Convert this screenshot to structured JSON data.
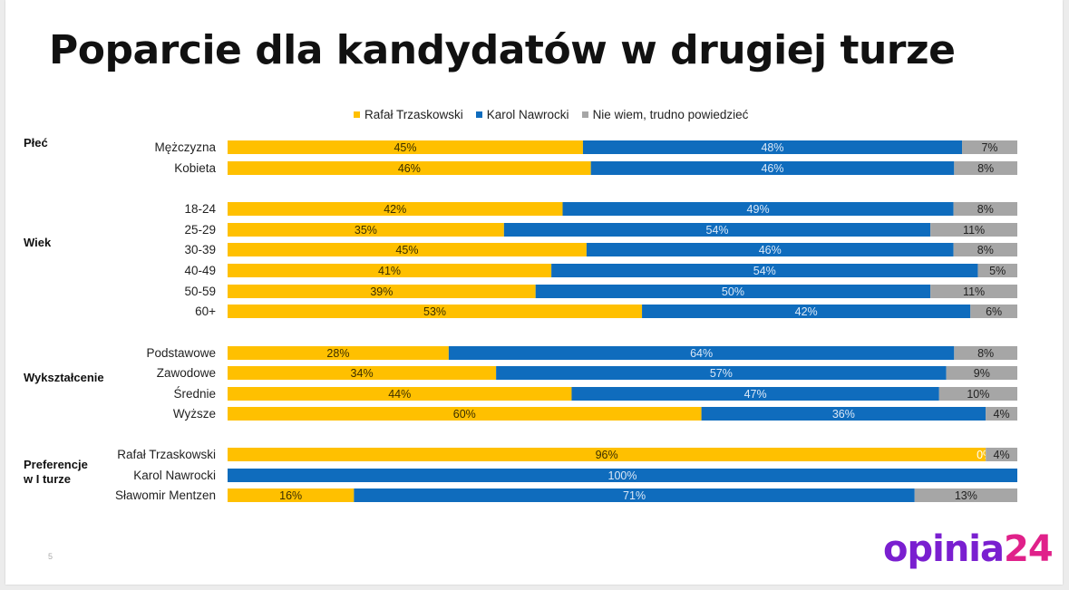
{
  "title": "Poparcie dla kandydatów w drugiej turze",
  "page_number": "5",
  "logo": {
    "main": "opinia",
    "accent": "24"
  },
  "colors": {
    "trzaskowski": "#ffc000",
    "nawrocki": "#0f6cbd",
    "unknown": "#a6a6a6"
  },
  "chart_data": {
    "type": "bar",
    "orientation": "horizontal",
    "stacked": true,
    "percent": true,
    "title": "Poparcie dla kandydatów w drugiej turze",
    "legend_position": "top",
    "series": [
      {
        "name": "Rafał Trzaskowski",
        "key": "trzaskowski"
      },
      {
        "name": "Karol Nawrocki",
        "key": "nawrocki"
      },
      {
        "name": "Nie wiem, trudno powiedzieć",
        "key": "unknown"
      }
    ],
    "groups": [
      {
        "label": [
          "Płeć"
        ],
        "rows": [
          {
            "category": "Mężczyzna",
            "values": [
              45,
              48,
              7
            ],
            "labels": [
              "45%",
              "48%",
              "7%"
            ]
          },
          {
            "category": "Kobieta",
            "values": [
              46,
              46,
              8
            ],
            "labels": [
              "46%",
              "46%",
              "8%"
            ]
          }
        ]
      },
      {
        "label": [
          "Wiek"
        ],
        "rows": [
          {
            "category": "18-24",
            "values": [
              42,
              49,
              8
            ],
            "labels": [
              "42%",
              "49%",
              "8%"
            ]
          },
          {
            "category": "25-29",
            "values": [
              35,
              54,
              11
            ],
            "labels": [
              "35%",
              "54%",
              "11%"
            ]
          },
          {
            "category": "30-39",
            "values": [
              45,
              46,
              8
            ],
            "labels": [
              "45%",
              "46%",
              "8%"
            ]
          },
          {
            "category": "40-49",
            "values": [
              41,
              54,
              5
            ],
            "labels": [
              "41%",
              "54%",
              "5%"
            ]
          },
          {
            "category": "50-59",
            "values": [
              39,
              50,
              11
            ],
            "labels": [
              "39%",
              "50%",
              "11%"
            ]
          },
          {
            "category": "60+",
            "values": [
              53,
              42,
              6
            ],
            "labels": [
              "53%",
              "42%",
              "6%"
            ]
          }
        ]
      },
      {
        "label": [
          "Wykształcenie"
        ],
        "rows": [
          {
            "category": "Podstawowe",
            "values": [
              28,
              64,
              8
            ],
            "labels": [
              "28%",
              "64%",
              "8%"
            ]
          },
          {
            "category": "Zawodowe",
            "values": [
              34,
              57,
              9
            ],
            "labels": [
              "34%",
              "57%",
              "9%"
            ]
          },
          {
            "category": "Średnie",
            "values": [
              44,
              47,
              10
            ],
            "labels": [
              "44%",
              "47%",
              "10%"
            ]
          },
          {
            "category": "Wyższe",
            "values": [
              60,
              36,
              4
            ],
            "labels": [
              "60%",
              "36%",
              "4%"
            ]
          }
        ]
      },
      {
        "label": [
          "Preferencje",
          "w I turze"
        ],
        "rows": [
          {
            "category": "Rafał Trzaskowski",
            "values": [
              96,
              0,
              4
            ],
            "labels": [
              "96%",
              "0%",
              "4%"
            ]
          },
          {
            "category": "Karol Nawrocki",
            "values": [
              0,
              100,
              0
            ],
            "labels": [
              "",
              "100%",
              ""
            ]
          },
          {
            "category": "Sławomir Mentzen",
            "values": [
              16,
              71,
              13
            ],
            "labels": [
              "16%",
              "71%",
              "13%"
            ]
          }
        ]
      }
    ]
  }
}
